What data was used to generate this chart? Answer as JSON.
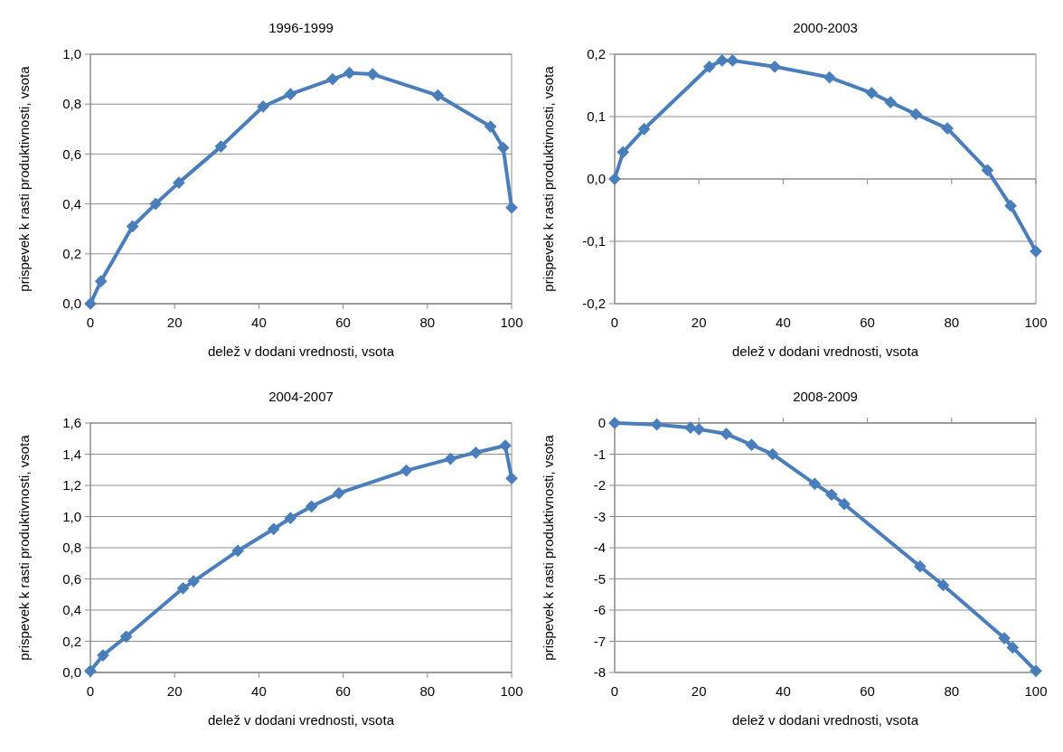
{
  "chart_data": [
    {
      "type": "line",
      "title": "1996-1999",
      "xlabel": "delež v dodani vrednosti, vsota",
      "ylabel": "prispevek k rasti produktivnosti, vsota",
      "xlim": [
        0,
        100
      ],
      "xticks": [
        0,
        20,
        40,
        60,
        80,
        100
      ],
      "ylim": [
        0,
        1
      ],
      "yticks": [
        {
          "value": 0,
          "label": "0,0"
        },
        {
          "value": 0.2,
          "label": "0,2"
        },
        {
          "value": 0.4,
          "label": "0,4"
        },
        {
          "value": 0.6,
          "label": "0,6"
        },
        {
          "value": 0.8,
          "label": "0,8"
        },
        {
          "value": 1,
          "label": "1,0"
        }
      ],
      "grid": "y",
      "marker": "diamond",
      "series": [
        {
          "color": "#4a7ebb",
          "x": [
            0,
            2.5,
            10,
            15.5,
            21,
            31,
            41,
            47.5,
            57.5,
            61.5,
            67,
            82.5,
            95,
            98,
            100
          ],
          "values": [
            0,
            0.09,
            0.31,
            0.4,
            0.485,
            0.63,
            0.79,
            0.84,
            0.9,
            0.925,
            0.92,
            0.835,
            0.71,
            0.625,
            0.385
          ]
        }
      ]
    },
    {
      "type": "line",
      "title": "2000-2003",
      "xlabel": "delež v dodani vrednosti, vsota",
      "ylabel": "prispevek k rasti produktivnosti, vsota",
      "xlim": [
        0,
        100
      ],
      "xticks": [
        0,
        20,
        40,
        60,
        80,
        100
      ],
      "ylim": [
        -0.2,
        0.2
      ],
      "yticks": [
        {
          "value": -0.2,
          "label": "-0,2"
        },
        {
          "value": -0.1,
          "label": "-0,1"
        },
        {
          "value": 0,
          "label": "0,0"
        },
        {
          "value": 0.1,
          "label": "0,1"
        },
        {
          "value": 0.2,
          "label": "0,2"
        }
      ],
      "grid": "y",
      "marker": "diamond",
      "series": [
        {
          "color": "#4a7ebb",
          "x": [
            0,
            2,
            7,
            22.5,
            25.5,
            28,
            38,
            51,
            61,
            65.5,
            71.5,
            79,
            88.5,
            94,
            100
          ],
          "values": [
            0,
            0.043,
            0.08,
            0.18,
            0.19,
            0.19,
            0.18,
            0.163,
            0.138,
            0.123,
            0.104,
            0.081,
            0.014,
            -0.043,
            -0.116
          ]
        }
      ]
    },
    {
      "type": "line",
      "title": "2004-2007",
      "xlabel": "delež v dodani vrednosti, vsota",
      "ylabel": "prispevek k rasti produktivnosti, vsota",
      "xlim": [
        0,
        100
      ],
      "xticks": [
        0,
        20,
        40,
        60,
        80,
        100
      ],
      "ylim": [
        0,
        1.6
      ],
      "yticks": [
        {
          "value": 0,
          "label": "0,0"
        },
        {
          "value": 0.2,
          "label": "0,2"
        },
        {
          "value": 0.4,
          "label": "0,4"
        },
        {
          "value": 0.6,
          "label": "0,6"
        },
        {
          "value": 0.8,
          "label": "0,8"
        },
        {
          "value": 1,
          "label": "1,0"
        },
        {
          "value": 1.2,
          "label": "1,2"
        },
        {
          "value": 1.4,
          "label": "1,4"
        },
        {
          "value": 1.6,
          "label": "1,6"
        }
      ],
      "grid": "y",
      "marker": "diamond",
      "series": [
        {
          "color": "#4a7ebb",
          "x": [
            0,
            3,
            8.5,
            22,
            24.5,
            35,
            43.5,
            47.5,
            52.5,
            59,
            75,
            85.5,
            91.5,
            98.5,
            100
          ],
          "values": [
            0.01,
            0.11,
            0.23,
            0.54,
            0.585,
            0.78,
            0.92,
            0.99,
            1.065,
            1.15,
            1.295,
            1.37,
            1.41,
            1.455,
            1.245
          ]
        }
      ]
    },
    {
      "type": "line",
      "title": "2008-2009",
      "xlabel": "delež v dodani vrednosti, vsota",
      "ylabel": "prispevek k rasti produktivnosti, vsota",
      "xlim": [
        0,
        100
      ],
      "xticks": [
        0,
        20,
        40,
        60,
        80,
        100
      ],
      "ylim": [
        -8,
        0
      ],
      "yticks": [
        -8,
        -7,
        -6,
        -5,
        -4,
        -3,
        -2,
        -1,
        0
      ],
      "grid": "y",
      "marker": "diamond",
      "series": [
        {
          "color": "#4a7ebb",
          "x": [
            0,
            10,
            18,
            20,
            26.5,
            32.5,
            37.5,
            47.5,
            51.5,
            54.5,
            72.5,
            78,
            92.5,
            94.5,
            100
          ],
          "values": [
            0,
            -0.05,
            -0.15,
            -0.2,
            -0.35,
            -0.7,
            -1,
            -1.95,
            -2.3,
            -2.6,
            -4.6,
            -5.2,
            -6.9,
            -7.2,
            -7.95
          ]
        }
      ]
    }
  ]
}
